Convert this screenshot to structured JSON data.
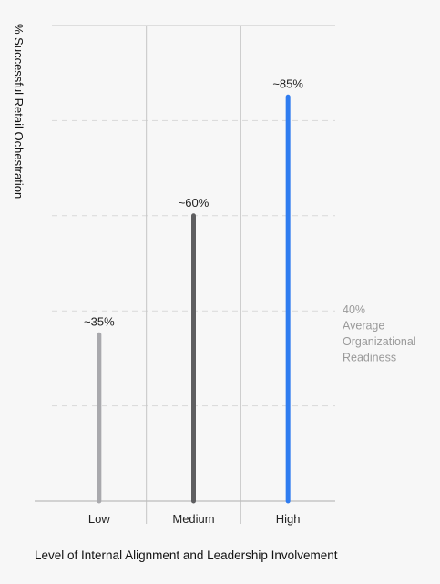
{
  "chart_data": {
    "type": "bar",
    "categories": [
      "Low",
      "Medium",
      "High"
    ],
    "values": [
      35,
      60,
      85
    ],
    "data_labels": [
      "~35%",
      "~60%",
      "~85%"
    ],
    "bar_colors": [
      "#a9a9ad",
      "#5e5e60",
      "#2f7cf0"
    ],
    "xlabel": "Level of Internal Alignment and Leadership Involvement",
    "ylabel": "% Successful Retail Ochestration",
    "ylim": [
      0,
      100
    ],
    "grid": true,
    "reference_line": {
      "value": 40,
      "label_lines": [
        "40%",
        "Average",
        "Organizational",
        "Readiness"
      ],
      "color": "#9a9a9a"
    }
  }
}
